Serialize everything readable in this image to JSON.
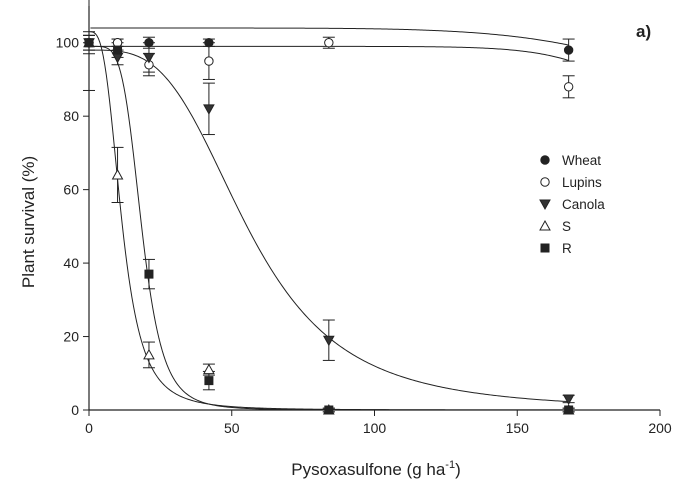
{
  "chart_data": {
    "type": "scatter",
    "panel_label": "a)",
    "xlabel_main": "Pysoxasulfone (g ha",
    "xlabel_sup": "-1",
    "xlabel_end": ")",
    "ylabel": "Plant survival (%)",
    "xlim": [
      0,
      200
    ],
    "ylim": [
      0,
      110
    ],
    "xticks": [
      "0",
      "50",
      "100",
      "150",
      "200"
    ],
    "yticks": [
      "0",
      "20",
      "40",
      "60",
      "80",
      "100"
    ],
    "xtick_values": [
      0,
      50,
      100,
      150,
      200
    ],
    "ytick_values": [
      0,
      20,
      40,
      60,
      80,
      100
    ],
    "legend_position": "right",
    "grid": false,
    "series": [
      {
        "name": "Wheat",
        "marker": "filled-circle",
        "points": [
          {
            "x": 0,
            "y": 100,
            "err": 2
          },
          {
            "x": 10,
            "y": 100,
            "err": 1
          },
          {
            "x": 21,
            "y": 100,
            "err": 1.5
          },
          {
            "x": 42,
            "y": 100,
            "err": 1
          },
          {
            "x": 168,
            "y": 98,
            "err": 3
          }
        ],
        "curve": {
          "model": "log-logistic",
          "top": 104,
          "bottom": 0,
          "ed50": 280,
          "slope": 6
        }
      },
      {
        "name": "Lupins",
        "marker": "open-circle",
        "points": [
          {
            "x": 0,
            "y": 100,
            "err": 2
          },
          {
            "x": 10,
            "y": 100,
            "err": 1
          },
          {
            "x": 21,
            "y": 94,
            "err": 3
          },
          {
            "x": 42,
            "y": 95,
            "err": 5
          },
          {
            "x": 84,
            "y": 100,
            "err": 1.5
          },
          {
            "x": 168,
            "y": 88,
            "err": 3
          }
        ],
        "curve": {
          "model": "log-logistic",
          "top": 99,
          "bottom": 0,
          "ed50": 225,
          "slope": 11
        }
      },
      {
        "name": "Canola",
        "marker": "filled-triangle-down",
        "points": [
          {
            "x": 0,
            "y": 100,
            "err": 3
          },
          {
            "x": 10,
            "y": 96,
            "err": 2
          },
          {
            "x": 21,
            "y": 96,
            "err": 4
          },
          {
            "x": 42,
            "y": 82,
            "err": 7
          },
          {
            "x": 84,
            "y": 19,
            "err": 5.5
          },
          {
            "x": 168,
            "y": 3,
            "err": 1
          }
        ],
        "curve": {
          "model": "log-logistic",
          "top": 98,
          "bottom": 0,
          "ed50": 56,
          "slope": 3.4
        }
      },
      {
        "name": "S",
        "marker": "open-triangle-up",
        "points": [
          {
            "x": 0,
            "y": 100,
            "err": 13
          },
          {
            "x": 10,
            "y": 64,
            "err": 7.5
          },
          {
            "x": 21,
            "y": 15,
            "err": 3.5
          },
          {
            "x": 42,
            "y": 11,
            "err": 1.5
          },
          {
            "x": 84,
            "y": 0,
            "err": 0.5
          },
          {
            "x": 168,
            "y": 0,
            "err": 0.5
          }
        ],
        "curve": {
          "model": "log-logistic",
          "top": 103,
          "bottom": 0,
          "ed50": 11.5,
          "slope": 3.2
        }
      },
      {
        "name": "R",
        "marker": "filled-square",
        "points": [
          {
            "x": 0,
            "y": 100,
            "err": 2
          },
          {
            "x": 10,
            "y": 98,
            "err": 2
          },
          {
            "x": 21,
            "y": 37,
            "err": 4
          },
          {
            "x": 42,
            "y": 8,
            "err": 2.5
          },
          {
            "x": 84,
            "y": 0,
            "err": 0.5
          },
          {
            "x": 168,
            "y": 0,
            "err": 0.5
          }
        ],
        "curve": {
          "model": "log-logistic",
          "top": 99,
          "bottom": 0,
          "ed50": 18.5,
          "slope": 5
        }
      }
    ]
  }
}
